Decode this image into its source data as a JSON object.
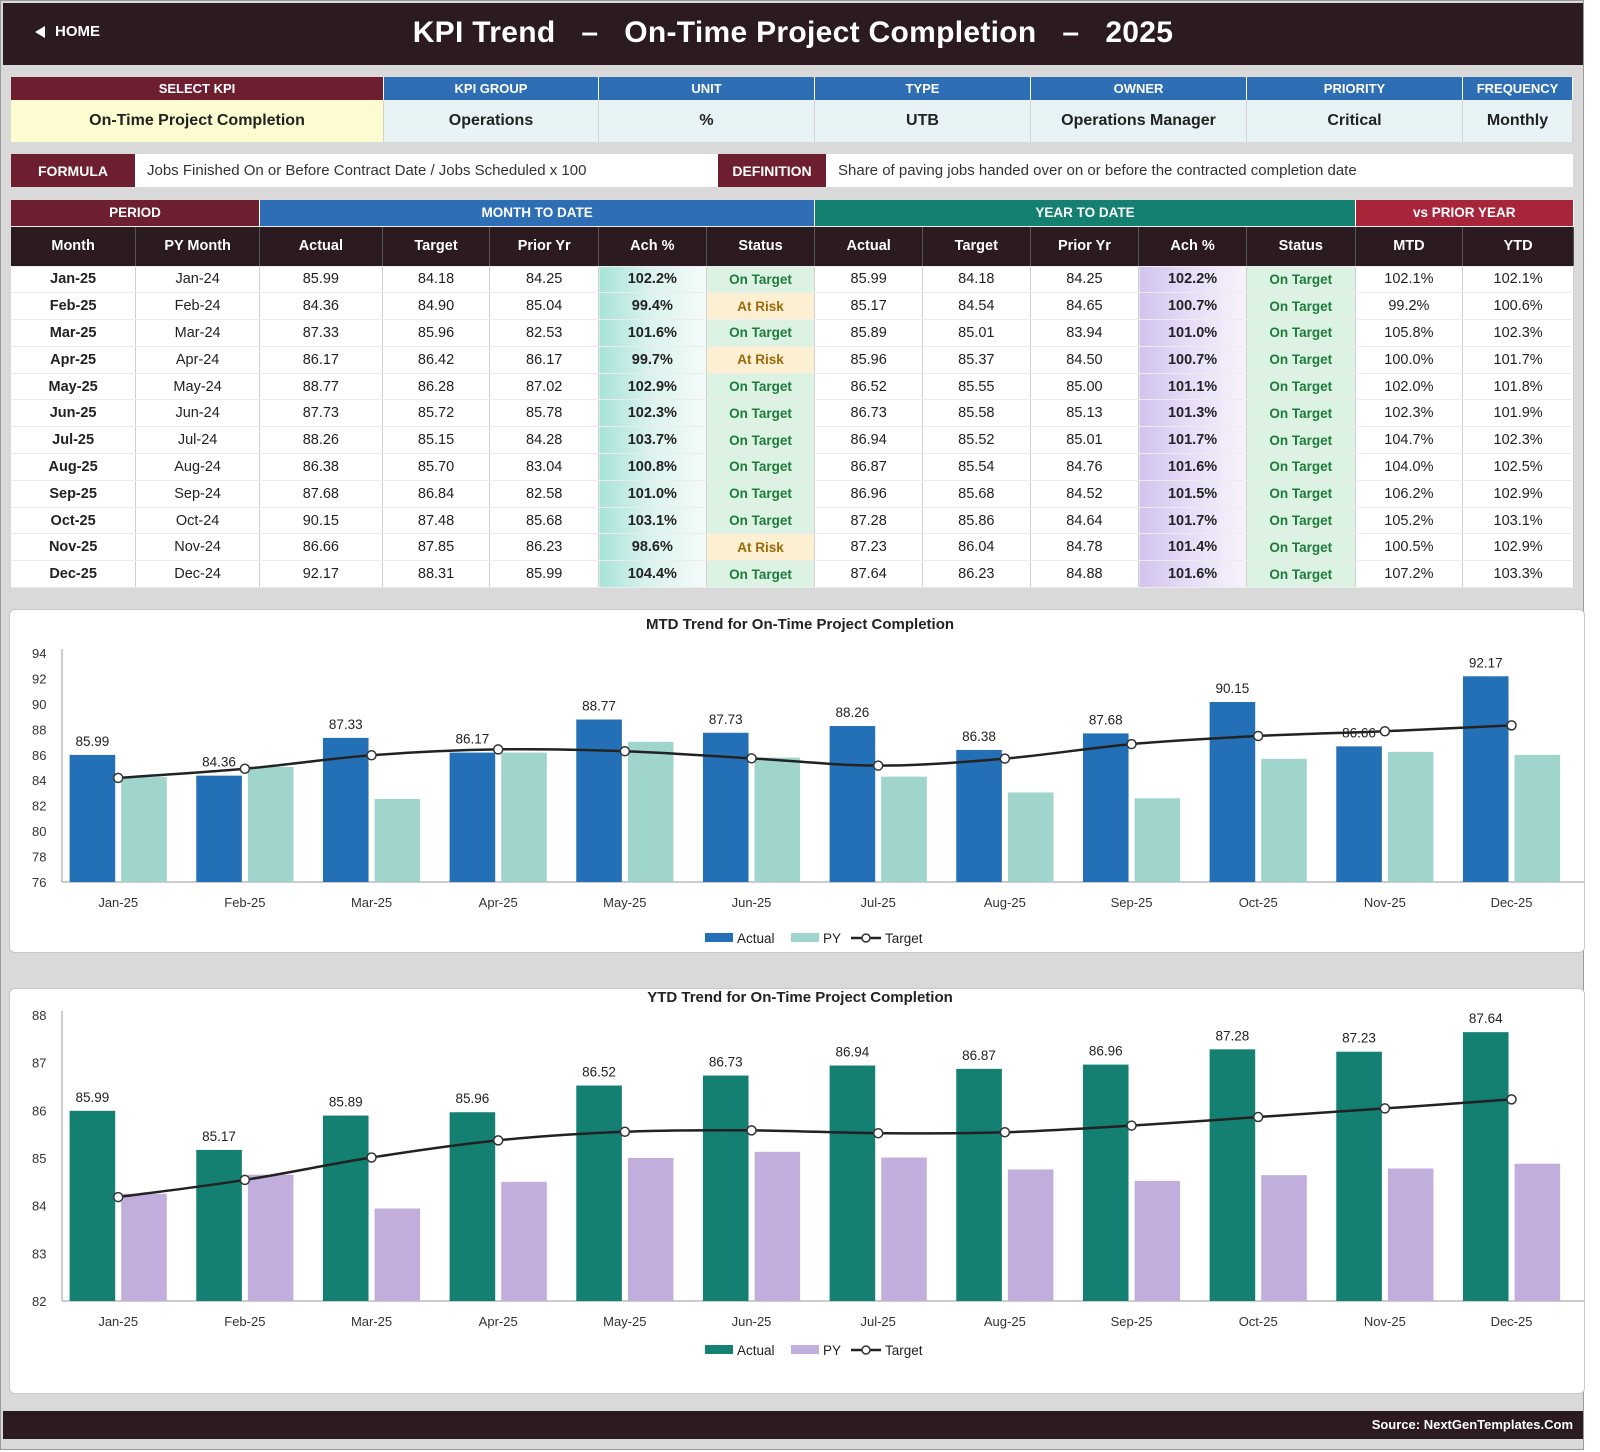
{
  "header": {
    "home_label": "HOME",
    "title": "KPI Trend   –   On-Time Project Completion   –   2025"
  },
  "kpi": {
    "columns": [
      {
        "label": "SELECT KPI",
        "value": "On-Time Project Completion"
      },
      {
        "label": "KPI GROUP",
        "value": "Operations"
      },
      {
        "label": "UNIT",
        "value": "%"
      },
      {
        "label": "TYPE",
        "value": "UTB"
      },
      {
        "label": "OWNER",
        "value": "Operations Manager"
      },
      {
        "label": "PRIORITY",
        "value": "Critical"
      },
      {
        "label": "FREQUENCY",
        "value": "Monthly"
      }
    ],
    "formula_label": "FORMULA",
    "formula": "Jobs Finished On or Before Contract Date / Jobs Scheduled x 100",
    "definition_label": "DEFINITION",
    "definition": "Share of paving jobs handed over on or before the contracted completion date"
  },
  "table": {
    "groups": {
      "period": "PERIOD",
      "mtd": "MONTH TO DATE",
      "ytd": "YEAR TO DATE",
      "vs_py": "vs PRIOR YEAR"
    },
    "headers": [
      "Month",
      "PY Month",
      "Actual",
      "Target",
      "Prior Yr",
      "Ach %",
      "Status",
      "Actual",
      "Target",
      "Prior Yr",
      "Ach %",
      "Status",
      "MTD",
      "YTD"
    ],
    "rows": [
      [
        "Jan-25",
        "Jan-24",
        "85.99",
        "84.18",
        "84.25",
        "102.2%",
        "On Target",
        "85.99",
        "84.18",
        "84.25",
        "102.2%",
        "On Target",
        "102.1%",
        "102.1%"
      ],
      [
        "Feb-25",
        "Feb-24",
        "84.36",
        "84.90",
        "85.04",
        "99.4%",
        "At Risk",
        "85.17",
        "84.54",
        "84.65",
        "100.7%",
        "On Target",
        "99.2%",
        "100.6%"
      ],
      [
        "Mar-25",
        "Mar-24",
        "87.33",
        "85.96",
        "82.53",
        "101.6%",
        "On Target",
        "85.89",
        "85.01",
        "83.94",
        "101.0%",
        "On Target",
        "105.8%",
        "102.3%"
      ],
      [
        "Apr-25",
        "Apr-24",
        "86.17",
        "86.42",
        "86.17",
        "99.7%",
        "At Risk",
        "85.96",
        "85.37",
        "84.50",
        "100.7%",
        "On Target",
        "100.0%",
        "101.7%"
      ],
      [
        "May-25",
        "May-24",
        "88.77",
        "86.28",
        "87.02",
        "102.9%",
        "On Target",
        "86.52",
        "85.55",
        "85.00",
        "101.1%",
        "On Target",
        "102.0%",
        "101.8%"
      ],
      [
        "Jun-25",
        "Jun-24",
        "87.73",
        "85.72",
        "85.78",
        "102.3%",
        "On Target",
        "86.73",
        "85.58",
        "85.13",
        "101.3%",
        "On Target",
        "102.3%",
        "101.9%"
      ],
      [
        "Jul-25",
        "Jul-24",
        "88.26",
        "85.15",
        "84.28",
        "103.7%",
        "On Target",
        "86.94",
        "85.52",
        "85.01",
        "101.7%",
        "On Target",
        "104.7%",
        "102.3%"
      ],
      [
        "Aug-25",
        "Aug-24",
        "86.38",
        "85.70",
        "83.04",
        "100.8%",
        "On Target",
        "86.87",
        "85.54",
        "84.76",
        "101.6%",
        "On Target",
        "104.0%",
        "102.5%"
      ],
      [
        "Sep-25",
        "Sep-24",
        "87.68",
        "86.84",
        "82.58",
        "101.0%",
        "On Target",
        "86.96",
        "85.68",
        "84.52",
        "101.5%",
        "On Target",
        "106.2%",
        "102.9%"
      ],
      [
        "Oct-25",
        "Oct-24",
        "90.15",
        "87.48",
        "85.68",
        "103.1%",
        "On Target",
        "87.28",
        "85.86",
        "84.64",
        "101.7%",
        "On Target",
        "105.2%",
        "103.1%"
      ],
      [
        "Nov-25",
        "Nov-24",
        "86.66",
        "87.85",
        "86.23",
        "98.6%",
        "At Risk",
        "87.23",
        "86.04",
        "84.78",
        "101.4%",
        "On Target",
        "100.5%",
        "102.9%"
      ],
      [
        "Dec-25",
        "Dec-24",
        "92.17",
        "88.31",
        "85.99",
        "104.4%",
        "On Target",
        "87.64",
        "86.23",
        "84.88",
        "101.6%",
        "On Target",
        "107.2%",
        "103.3%"
      ]
    ]
  },
  "chart_data": [
    {
      "type": "bar",
      "title": "MTD Trend for On-Time Project Completion",
      "categories": [
        "Jan-25",
        "Feb-25",
        "Mar-25",
        "Apr-25",
        "May-25",
        "Jun-25",
        "Jul-25",
        "Aug-25",
        "Sep-25",
        "Oct-25",
        "Nov-25",
        "Dec-25"
      ],
      "series": [
        {
          "name": "Actual",
          "kind": "bar",
          "color": "#2470b6",
          "values": [
            85.99,
            84.36,
            87.33,
            86.17,
            88.77,
            87.73,
            88.26,
            86.38,
            87.68,
            90.15,
            86.66,
            92.17
          ]
        },
        {
          "name": "PY",
          "kind": "bar",
          "color": "#9fd5cc",
          "values": [
            84.25,
            85.04,
            82.53,
            86.17,
            87.02,
            85.78,
            84.28,
            83.04,
            82.58,
            85.68,
            86.23,
            85.99
          ]
        },
        {
          "name": "Target",
          "kind": "line",
          "color": "#222222",
          "values": [
            84.18,
            84.9,
            85.96,
            86.42,
            86.28,
            85.72,
            85.15,
            85.7,
            86.84,
            87.48,
            87.85,
            88.31
          ]
        }
      ],
      "ylim": [
        76,
        94
      ],
      "yticks": [
        76,
        78,
        80,
        82,
        84,
        86,
        88,
        90,
        92,
        94
      ],
      "legend": "bottom-center",
      "grid": false
    },
    {
      "type": "bar",
      "title": "YTD Trend for On-Time Project Completion",
      "categories": [
        "Jan-25",
        "Feb-25",
        "Mar-25",
        "Apr-25",
        "May-25",
        "Jun-25",
        "Jul-25",
        "Aug-25",
        "Sep-25",
        "Oct-25",
        "Nov-25",
        "Dec-25"
      ],
      "series": [
        {
          "name": "Actual",
          "kind": "bar",
          "color": "#148071",
          "values": [
            85.99,
            85.17,
            85.89,
            85.96,
            86.52,
            86.73,
            86.94,
            86.87,
            86.96,
            87.28,
            87.23,
            87.64
          ]
        },
        {
          "name": "PY",
          "kind": "bar",
          "color": "#c2aedd",
          "values": [
            84.25,
            84.65,
            83.94,
            84.5,
            85.0,
            85.13,
            85.01,
            84.76,
            84.52,
            84.64,
            84.78,
            84.88
          ]
        },
        {
          "name": "Target",
          "kind": "line",
          "color": "#222222",
          "values": [
            84.18,
            84.54,
            85.01,
            85.37,
            85.55,
            85.58,
            85.52,
            85.54,
            85.68,
            85.86,
            86.04,
            86.23
          ]
        }
      ],
      "ylim": [
        82,
        88
      ],
      "yticks": [
        82,
        83,
        84,
        85,
        86,
        87,
        88
      ],
      "legend": "bottom-center",
      "grid": false
    }
  ],
  "footer": {
    "source": "Source: NextGenTemplates.Com"
  }
}
